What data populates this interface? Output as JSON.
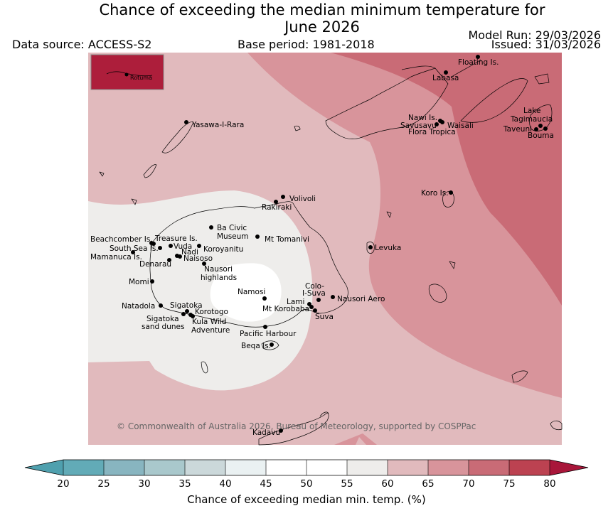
{
  "header": {
    "title_line1": "Chance of exceeding the median minimum temperature for",
    "title_line2": "June 2026",
    "data_source": "Data source: ACCESS-S2",
    "base_period": "Base period: 1981-2018",
    "model_run": "Model Run: 29/03/2026",
    "issued": "Issued: 31/03/2026"
  },
  "map": {
    "copyright": "© Commonwealth of Australia 2026, Bureau of Meteorology, supported by COSPPac",
    "inset_label": "Rotuma",
    "places": [
      {
        "id": "floating-is",
        "label": "Floating Is."
      },
      {
        "id": "labasa",
        "label": "Labasa"
      },
      {
        "id": "yasawa-i-rara",
        "label": "Yasawa-I-Rara"
      },
      {
        "id": "nawi-is",
        "label": "Nawi Is."
      },
      {
        "id": "savusavu",
        "label": "Savusavu"
      },
      {
        "id": "waisali",
        "label": "Waisali"
      },
      {
        "id": "flora-tropica",
        "label": "Flora Tropica"
      },
      {
        "id": "lake-tagimaucia-1",
        "label": "Lake"
      },
      {
        "id": "lake-tagimaucia-2",
        "label": "Tagimaucia"
      },
      {
        "id": "taveuni",
        "label": "Taveuni"
      },
      {
        "id": "bouma",
        "label": "Bouma"
      },
      {
        "id": "volivoli",
        "label": "Volivoli"
      },
      {
        "id": "rakiraki",
        "label": "Rakiraki"
      },
      {
        "id": "koro-is",
        "label": "Koro Is."
      },
      {
        "id": "ba-civic-1",
        "label": "Ba Civic"
      },
      {
        "id": "ba-civic-2",
        "label": "Museum"
      },
      {
        "id": "mt-tomanivi",
        "label": "Mt Tomanivi"
      },
      {
        "id": "beachcomber-is",
        "label": "Beachcomber Is."
      },
      {
        "id": "treasure-is",
        "label": "Treasure Is."
      },
      {
        "id": "south-sea-is",
        "label": "South Sea Is."
      },
      {
        "id": "vuda",
        "label": "Vuda"
      },
      {
        "id": "koroyanitu",
        "label": "Koroyanitu"
      },
      {
        "id": "levuka",
        "label": "Levuka"
      },
      {
        "id": "nadi",
        "label": "Nadi"
      },
      {
        "id": "mamanuca-is",
        "label": "Mamanuca Is."
      },
      {
        "id": "naisoso",
        "label": "Naisoso"
      },
      {
        "id": "denarau",
        "label": "Denarau"
      },
      {
        "id": "nausori-highlands-1",
        "label": "Nausori"
      },
      {
        "id": "nausori-highlands-2",
        "label": "highlands"
      },
      {
        "id": "momi",
        "label": "Momi"
      },
      {
        "id": "colo-i-suva-1",
        "label": "Colo-"
      },
      {
        "id": "colo-i-suva-2",
        "label": "I-Suva"
      },
      {
        "id": "namosi",
        "label": "Namosi"
      },
      {
        "id": "nausori-aero",
        "label": "Nausori Aero"
      },
      {
        "id": "lami",
        "label": "Lami"
      },
      {
        "id": "natadola",
        "label": "Natadola"
      },
      {
        "id": "sigatoka",
        "label": "Sigatoka"
      },
      {
        "id": "mt-korobaba",
        "label": "Mt Korobaba"
      },
      {
        "id": "suva",
        "label": "Suva"
      },
      {
        "id": "korotogo",
        "label": "Korotogo"
      },
      {
        "id": "sigatoka-dunes-1",
        "label": "Sigatoka"
      },
      {
        "id": "sigatoka-dunes-2",
        "label": "sand dunes"
      },
      {
        "id": "kula-wild-1",
        "label": "Kula Wild"
      },
      {
        "id": "kula-wild-2",
        "label": "Adventure"
      },
      {
        "id": "pacific-harbour",
        "label": "Pacific Harbour"
      },
      {
        "id": "beqa-is",
        "label": "Beqa Is."
      },
      {
        "id": "kadavu",
        "label": "Kadavu"
      }
    ]
  },
  "colorbar": {
    "title": "Chance of exceeding median min. temp. (%)",
    "ticks": [
      "20",
      "25",
      "30",
      "35",
      "40",
      "45",
      "50",
      "55",
      "60",
      "65",
      "70",
      "75",
      "80"
    ],
    "colors": {
      "below_20": "#4fa0ae",
      "20_25": "#62abb7",
      "25_30": "#88b5c0",
      "30_35": "#a9c8cc",
      "35_40": "#cbd8da",
      "40_45": "#eaf1f2",
      "45_50": "#ffffff",
      "50_55": "#ffffff",
      "55_60": "#eeedeb",
      "60_65": "#e1babd",
      "65_70": "#d8949b",
      "70_75": "#c96b76",
      "75_80": "#bc4251",
      "above_80": "#a8163a"
    }
  }
}
